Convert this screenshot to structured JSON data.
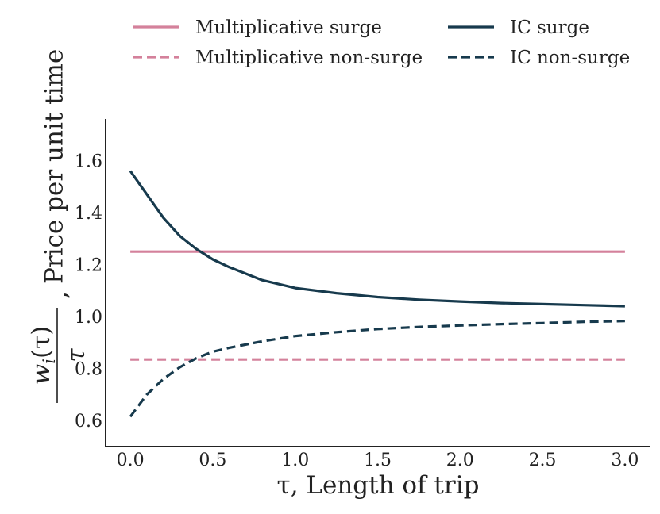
{
  "chart_data": {
    "type": "line",
    "title": "",
    "xlabel": "τ, Length of trip",
    "ylabel": "Price per unit time",
    "ylabel_math": {
      "numerator": "w",
      "numerator_sub": "i",
      "numerator_tail": "(τ)",
      "denominator": "τ",
      "separator": ","
    },
    "xlim": [
      -0.15,
      3.15
    ],
    "ylim": [
      0.5,
      1.76
    ],
    "xticks": [
      0.0,
      0.5,
      1.0,
      1.5,
      2.0,
      2.5,
      3.0
    ],
    "xtick_labels": [
      "0.0",
      "0.5",
      "1.0",
      "1.5",
      "2.0",
      "2.5",
      "3.0"
    ],
    "yticks": [
      0.6,
      0.8,
      1.0,
      1.2,
      1.4,
      1.6
    ],
    "ytick_labels": [
      "0.6",
      "0.8",
      "1.0",
      "1.2",
      "1.4",
      "1.6"
    ],
    "grid": false,
    "legend_position": "top",
    "series": [
      {
        "name": "Multiplicative surge",
        "color": "#d4819b",
        "dash": "solid",
        "x": [
          0.0,
          3.0
        ],
        "values": [
          1.25,
          1.25
        ]
      },
      {
        "name": "IC surge",
        "color": "#173a4d",
        "dash": "solid",
        "x": [
          0.0,
          0.1,
          0.2,
          0.3,
          0.4,
          0.5,
          0.6,
          0.8,
          1.0,
          1.25,
          1.5,
          1.75,
          2.0,
          2.25,
          2.5,
          2.75,
          3.0
        ],
        "values": [
          1.56,
          1.47,
          1.38,
          1.31,
          1.26,
          1.22,
          1.19,
          1.14,
          1.11,
          1.09,
          1.075,
          1.065,
          1.058,
          1.052,
          1.048,
          1.044,
          1.04
        ]
      },
      {
        "name": "Multiplicative non-surge",
        "color": "#d4819b",
        "dash": "dashed",
        "x": [
          0.0,
          3.0
        ],
        "values": [
          0.835,
          0.835
        ]
      },
      {
        "name": "IC non-surge",
        "color": "#173a4d",
        "dash": "dashed",
        "x": [
          0.0,
          0.1,
          0.2,
          0.3,
          0.4,
          0.5,
          0.6,
          0.8,
          1.0,
          1.25,
          1.5,
          1.75,
          2.0,
          2.25,
          2.5,
          2.75,
          3.0
        ],
        "values": [
          0.615,
          0.7,
          0.76,
          0.805,
          0.84,
          0.865,
          0.88,
          0.905,
          0.925,
          0.94,
          0.952,
          0.96,
          0.966,
          0.971,
          0.975,
          0.98,
          0.983
        ]
      }
    ]
  }
}
